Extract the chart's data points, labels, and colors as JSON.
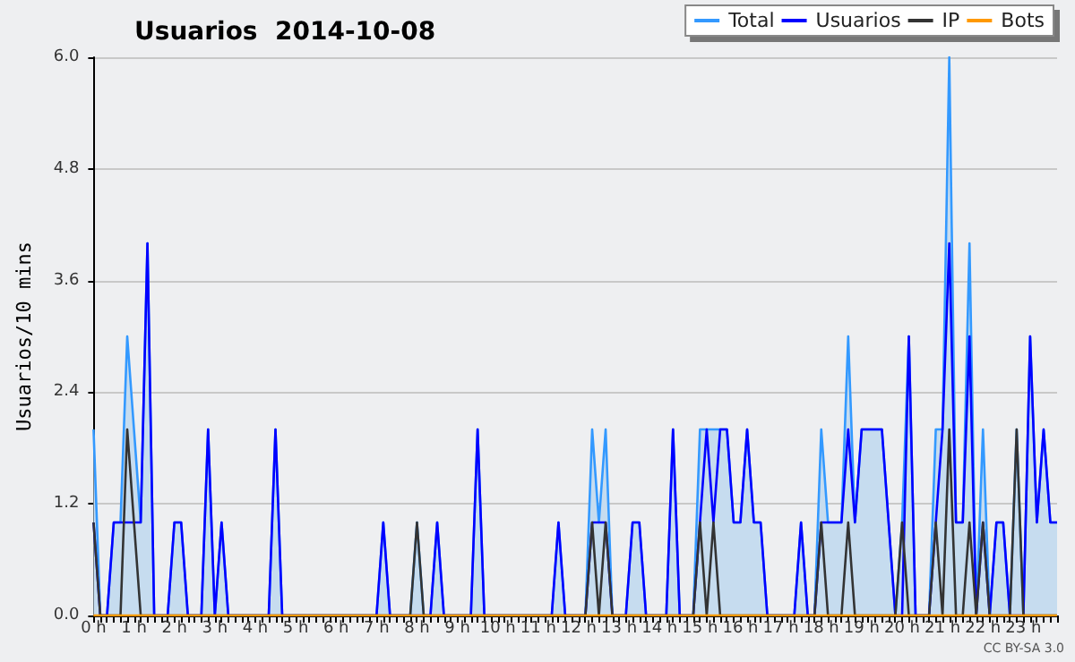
{
  "chart_data": {
    "type": "line",
    "title": "Usuarios  2014-10-08",
    "ylabel": "Usuarios/10 mins",
    "annotations": [
      "CC BY-SA 3.0"
    ],
    "categories": [
      "0 h",
      null,
      null,
      null,
      null,
      null,
      "1 h",
      null,
      null,
      null,
      null,
      null,
      "2 h",
      null,
      null,
      null,
      null,
      null,
      "3 h",
      null,
      null,
      null,
      null,
      null,
      "4 h",
      null,
      null,
      null,
      null,
      null,
      "5 h",
      null,
      null,
      null,
      null,
      null,
      "6 h",
      null,
      null,
      null,
      null,
      null,
      "7 h",
      null,
      null,
      null,
      null,
      null,
      "8 h",
      null,
      null,
      null,
      null,
      null,
      "9 h",
      null,
      null,
      null,
      null,
      null,
      "10 h",
      null,
      null,
      null,
      null,
      null,
      "11 h",
      null,
      null,
      null,
      null,
      null,
      "12 h",
      null,
      null,
      null,
      null,
      null,
      "13 h",
      null,
      null,
      null,
      null,
      null,
      "14 h",
      null,
      null,
      null,
      null,
      null,
      "15 h",
      null,
      null,
      null,
      null,
      null,
      "16 h",
      null,
      null,
      null,
      null,
      null,
      "17 h",
      null,
      null,
      null,
      null,
      null,
      "18 h",
      null,
      null,
      null,
      null,
      null,
      "19 h",
      null,
      null,
      null,
      null,
      null,
      "20 h",
      null,
      null,
      null,
      null,
      null,
      "21 h",
      null,
      null,
      null,
      null,
      null,
      "22 h",
      null,
      null,
      null,
      null,
      null,
      "23 h",
      null,
      null,
      null,
      null,
      null
    ],
    "series": [
      {
        "name": "Total",
        "type": "area",
        "color": "#3399ff",
        "values": [
          2,
          0,
          0,
          1,
          1,
          3,
          2,
          1,
          4,
          0,
          0,
          0,
          1,
          1,
          0,
          0,
          0,
          2,
          0,
          1,
          0,
          0,
          0,
          0,
          0,
          0,
          0,
          2,
          0,
          0,
          0,
          0,
          0,
          0,
          0,
          0,
          0,
          0,
          0,
          0,
          0,
          0,
          0,
          1,
          0,
          0,
          0,
          0,
          1,
          0,
          0,
          1,
          0,
          0,
          0,
          0,
          0,
          2,
          0,
          0,
          0,
          0,
          0,
          0,
          0,
          0,
          0,
          0,
          0,
          1,
          0,
          0,
          0,
          0,
          2,
          1,
          2,
          0,
          0,
          0,
          1,
          1,
          0,
          0,
          0,
          0,
          2,
          0,
          0,
          0,
          2,
          2,
          2,
          2,
          2,
          1,
          1,
          2,
          1,
          1,
          0,
          0,
          0,
          0,
          0,
          1,
          0,
          0,
          2,
          1,
          1,
          1,
          3,
          1,
          2,
          2,
          2,
          2,
          1,
          0,
          1,
          3,
          0,
          0,
          0,
          2,
          2,
          6,
          1,
          1,
          4,
          0,
          2,
          0,
          1,
          1,
          0,
          2,
          0,
          3,
          1,
          2,
          1,
          1
        ]
      },
      {
        "name": "Usuarios",
        "type": "line",
        "color": "#0000ff",
        "values": [
          1,
          0,
          0,
          1,
          1,
          1,
          1,
          1,
          4,
          0,
          0,
          0,
          1,
          1,
          0,
          0,
          0,
          2,
          0,
          1,
          0,
          0,
          0,
          0,
          0,
          0,
          0,
          2,
          0,
          0,
          0,
          0,
          0,
          0,
          0,
          0,
          0,
          0,
          0,
          0,
          0,
          0,
          0,
          1,
          0,
          0,
          0,
          0,
          0,
          0,
          0,
          1,
          0,
          0,
          0,
          0,
          0,
          2,
          0,
          0,
          0,
          0,
          0,
          0,
          0,
          0,
          0,
          0,
          0,
          1,
          0,
          0,
          0,
          0,
          1,
          1,
          1,
          0,
          0,
          0,
          1,
          1,
          0,
          0,
          0,
          0,
          2,
          0,
          0,
          0,
          1,
          2,
          1,
          2,
          2,
          1,
          1,
          2,
          1,
          1,
          0,
          0,
          0,
          0,
          0,
          1,
          0,
          0,
          1,
          1,
          1,
          1,
          2,
          1,
          2,
          2,
          2,
          2,
          1,
          0,
          0,
          3,
          0,
          0,
          0,
          1,
          2,
          4,
          1,
          1,
          3,
          0,
          1,
          0,
          1,
          1,
          0,
          0,
          0,
          3,
          1,
          2,
          1,
          1
        ]
      },
      {
        "name": "IP",
        "type": "line",
        "color": "#333333",
        "values": [
          1,
          0,
          0,
          0,
          0,
          2,
          1,
          0,
          0,
          0,
          0,
          0,
          0,
          0,
          0,
          0,
          0,
          0,
          0,
          0,
          0,
          0,
          0,
          0,
          0,
          0,
          0,
          0,
          0,
          0,
          0,
          0,
          0,
          0,
          0,
          0,
          0,
          0,
          0,
          0,
          0,
          0,
          0,
          0,
          0,
          0,
          0,
          0,
          1,
          0,
          0,
          0,
          0,
          0,
          0,
          0,
          0,
          0,
          0,
          0,
          0,
          0,
          0,
          0,
          0,
          0,
          0,
          0,
          0,
          0,
          0,
          0,
          0,
          0,
          1,
          0,
          1,
          0,
          0,
          0,
          0,
          0,
          0,
          0,
          0,
          0,
          0,
          0,
          0,
          0,
          1,
          0,
          1,
          0,
          0,
          0,
          0,
          0,
          0,
          0,
          0,
          0,
          0,
          0,
          0,
          0,
          0,
          0,
          1,
          0,
          0,
          0,
          1,
          0,
          0,
          0,
          0,
          0,
          0,
          0,
          1,
          0,
          0,
          0,
          0,
          1,
          0,
          2,
          0,
          0,
          1,
          0,
          1,
          0,
          0,
          0,
          0,
          2,
          0,
          0,
          0,
          0,
          0,
          0
        ]
      },
      {
        "name": "Bots",
        "type": "line",
        "color": "#ff9900",
        "values": [
          0,
          0,
          0,
          0,
          0,
          0,
          0,
          0,
          0,
          0,
          0,
          0,
          0,
          0,
          0,
          0,
          0,
          0,
          0,
          0,
          0,
          0,
          0,
          0,
          0,
          0,
          0,
          0,
          0,
          0,
          0,
          0,
          0,
          0,
          0,
          0,
          0,
          0,
          0,
          0,
          0,
          0,
          0,
          0,
          0,
          0,
          0,
          0,
          0,
          0,
          0,
          0,
          0,
          0,
          0,
          0,
          0,
          0,
          0,
          0,
          0,
          0,
          0,
          0,
          0,
          0,
          0,
          0,
          0,
          0,
          0,
          0,
          0,
          0,
          0,
          0,
          0,
          0,
          0,
          0,
          0,
          0,
          0,
          0,
          0,
          0,
          0,
          0,
          0,
          0,
          0,
          0,
          0,
          0,
          0,
          0,
          0,
          0,
          0,
          0,
          0,
          0,
          0,
          0,
          0,
          0,
          0,
          0,
          0,
          0,
          0,
          0,
          0,
          0,
          0,
          0,
          0,
          0,
          0,
          0,
          0,
          0,
          0,
          0,
          0,
          0,
          0,
          0,
          0,
          0,
          0,
          0,
          0,
          0,
          0,
          0,
          0,
          0,
          0,
          0,
          0,
          0,
          0,
          0
        ]
      }
    ],
    "ylim": [
      0,
      6
    ],
    "yticks": [
      {
        "value": 0,
        "label": "0.0"
      },
      {
        "value": 1.2,
        "label": "1.2"
      },
      {
        "value": 2.4,
        "label": "2.4"
      },
      {
        "value": 3.6,
        "label": "3.6"
      },
      {
        "value": 4.8,
        "label": "4.8"
      },
      {
        "value": 6,
        "label": "6.0"
      }
    ],
    "grid": "y",
    "legend": "top right",
    "marker": "none",
    "line_style": "solid"
  }
}
